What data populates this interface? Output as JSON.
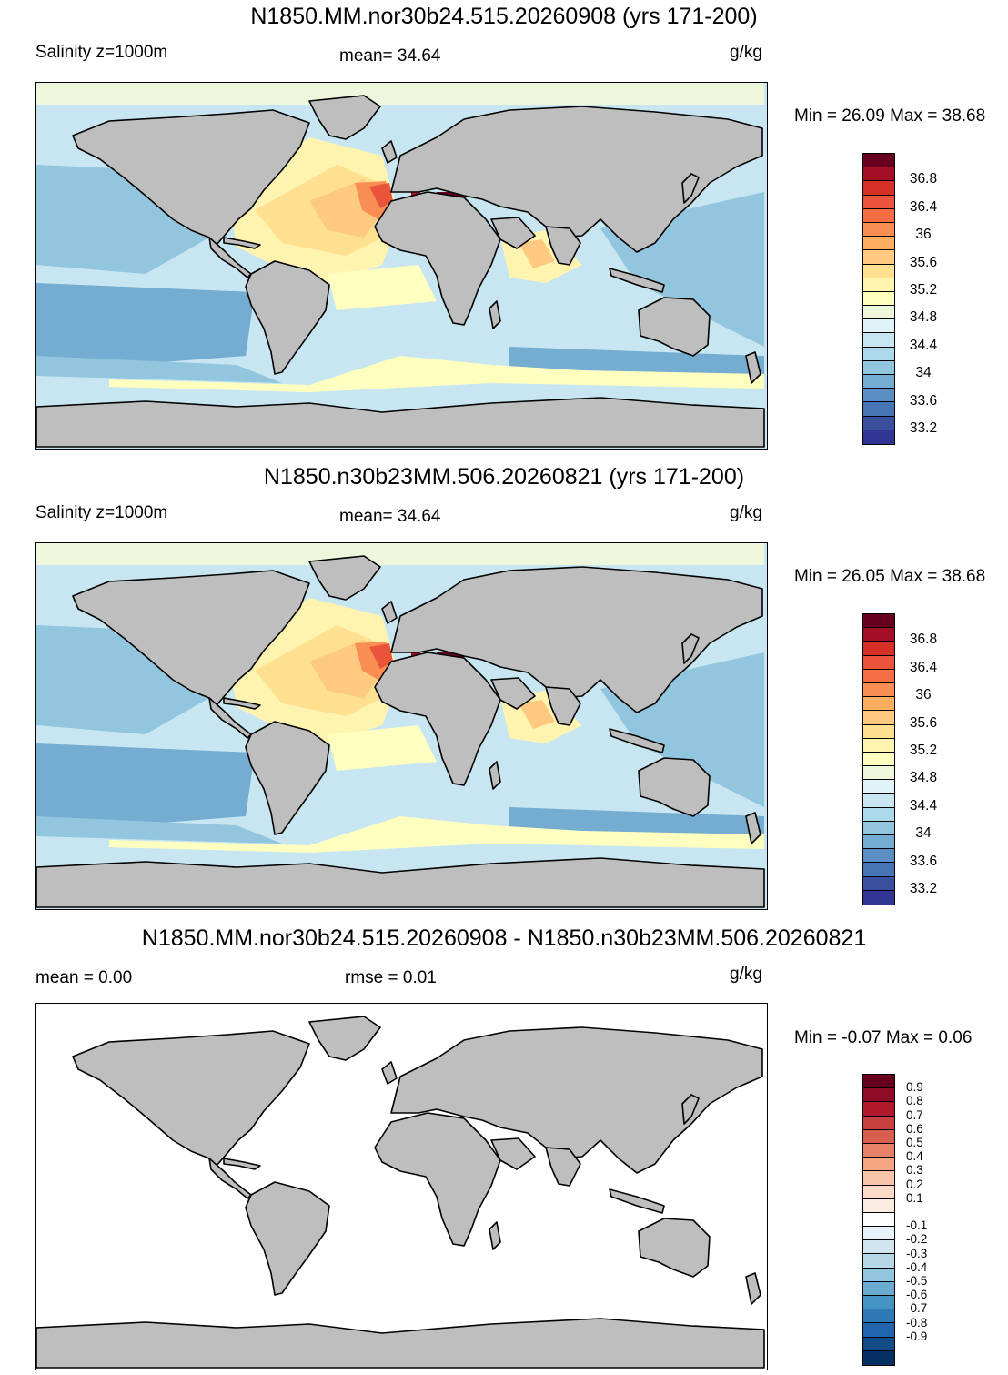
{
  "panels": [
    {
      "title": "N1850.MM.nor30b24.515.20260908 (yrs 171-200)",
      "var_label": "Salinity z=1000m",
      "stat_label": "mean=  34.64",
      "units": "g/kg",
      "minmax": "Min =  26.09 Max =  38.68",
      "kind": "field"
    },
    {
      "title": "N1850.n30b23MM.506.20260821 (yrs 171-200)",
      "var_label": "Salinity z=1000m",
      "stat_label": "mean=  34.64",
      "units": "g/kg",
      "minmax": "Min =  26.05 Max =  38.68",
      "kind": "field"
    },
    {
      "title": "N1850.MM.nor30b24.515.20260908 - N1850.n30b23MM.506.20260821",
      "var_label": "mean =   0.00",
      "stat_label": "rmse =   0.01",
      "units": "g/kg",
      "minmax": "Min =  -0.07 Max =   0.06",
      "kind": "diff"
    }
  ],
  "chart_data": [
    {
      "type": "heatmap",
      "title": "N1850.MM.nor30b24.515.20260908 (yrs 171-200)",
      "variable": "Salinity z=1000m",
      "units": "g/kg",
      "mean": 34.64,
      "min": 26.09,
      "max": 38.68,
      "colorbar_ticks": [
        "36.8",
        "36.4",
        "36",
        "35.6",
        "35.2",
        "34.8",
        "34.4",
        "34",
        "33.6",
        "33.2"
      ],
      "colorbar_colors": [
        "#67001f",
        "#a50f26",
        "#d73027",
        "#e9543a",
        "#f46d43",
        "#f98e52",
        "#fdae61",
        "#fec980",
        "#fee090",
        "#fff3b0",
        "#ffffbf",
        "#eef7dc",
        "#e0f3f8",
        "#c8e6f1",
        "#abd9e9",
        "#92c5de",
        "#74add1",
        "#5b8fc4",
        "#4575b4",
        "#3a4f9e",
        "#313695"
      ]
    },
    {
      "type": "heatmap",
      "title": "N1850.n30b23MM.506.20260821 (yrs 171-200)",
      "variable": "Salinity z=1000m",
      "units": "g/kg",
      "mean": 34.64,
      "min": 26.05,
      "max": 38.68,
      "colorbar_ticks": [
        "36.8",
        "36.4",
        "36",
        "35.6",
        "35.2",
        "34.8",
        "34.4",
        "34",
        "33.6",
        "33.2"
      ],
      "colorbar_colors": [
        "#67001f",
        "#a50f26",
        "#d73027",
        "#e9543a",
        "#f46d43",
        "#f98e52",
        "#fdae61",
        "#fec980",
        "#fee090",
        "#fff3b0",
        "#ffffbf",
        "#eef7dc",
        "#e0f3f8",
        "#c8e6f1",
        "#abd9e9",
        "#92c5de",
        "#74add1",
        "#5b8fc4",
        "#4575b4",
        "#3a4f9e",
        "#313695"
      ]
    },
    {
      "type": "heatmap",
      "title": "N1850.MM.nor30b24.515.20260908 - N1850.n30b23MM.506.20260821",
      "units": "g/kg",
      "mean": 0.0,
      "rmse": 0.01,
      "min": -0.07,
      "max": 0.06,
      "colorbar_ticks": [
        "0.9",
        "0.8",
        "0.7",
        "0.6",
        "0.5",
        "0.4",
        "0.3",
        "0.2",
        "0.1",
        "-0.1",
        "-0.2",
        "-0.3",
        "-0.4",
        "-0.5",
        "-0.6",
        "-0.7",
        "-0.8",
        "-0.9"
      ],
      "colorbar_colors": [
        "#67001f",
        "#8e0c25",
        "#b2182b",
        "#c9413f",
        "#d6604d",
        "#e58267",
        "#f4a582",
        "#f8c4a8",
        "#fddbc7",
        "#fbece2",
        "#ffffff",
        "#e8f1f7",
        "#d1e5f0",
        "#b6d7e8",
        "#92c5de",
        "#6aacd0",
        "#4393c3",
        "#2f79b5",
        "#2166ac",
        "#134b87",
        "#053061"
      ]
    }
  ],
  "colors": {
    "land": "#bebebe",
    "coast": "#000000"
  }
}
